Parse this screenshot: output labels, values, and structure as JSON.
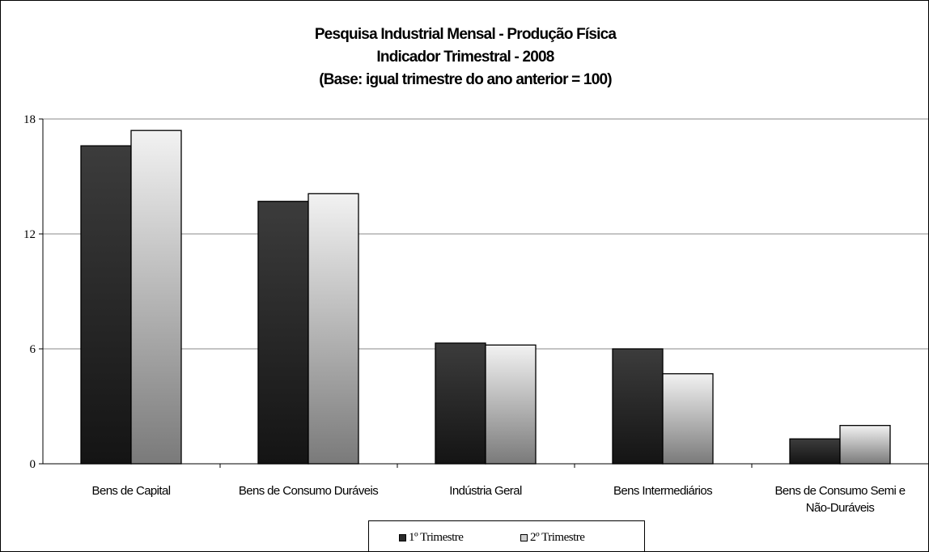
{
  "chart_data": {
    "type": "bar",
    "title": [
      "Pesquisa Industrial Mensal - Produção Física",
      "Indicador Trimestral - 2008",
      "(Base: igual trimestre do ano anterior = 100)"
    ],
    "categories": [
      [
        "Bens de Capital"
      ],
      [
        "Bens de Consumo Duráveis"
      ],
      [
        "Indústria Geral"
      ],
      [
        "Bens Intermediários"
      ],
      [
        "Bens de Consumo Semi e",
        "Não-Duráveis"
      ]
    ],
    "series": [
      {
        "name": "1º Trimestre",
        "values": [
          16.6,
          13.7,
          6.3,
          6.0,
          1.3
        ],
        "color_top": "#3c3c3c",
        "color_bottom": "#141414"
      },
      {
        "name": "2º Trimestre",
        "values": [
          17.4,
          14.1,
          6.2,
          4.7,
          2.0
        ],
        "color_top": "#f2f2f2",
        "color_bottom": "#7a7a7a"
      }
    ],
    "y_ticks": [
      "0",
      "6",
      "12",
      "18"
    ],
    "ylim": [
      0,
      18
    ],
    "grid": true,
    "legend_position": "bottom"
  }
}
